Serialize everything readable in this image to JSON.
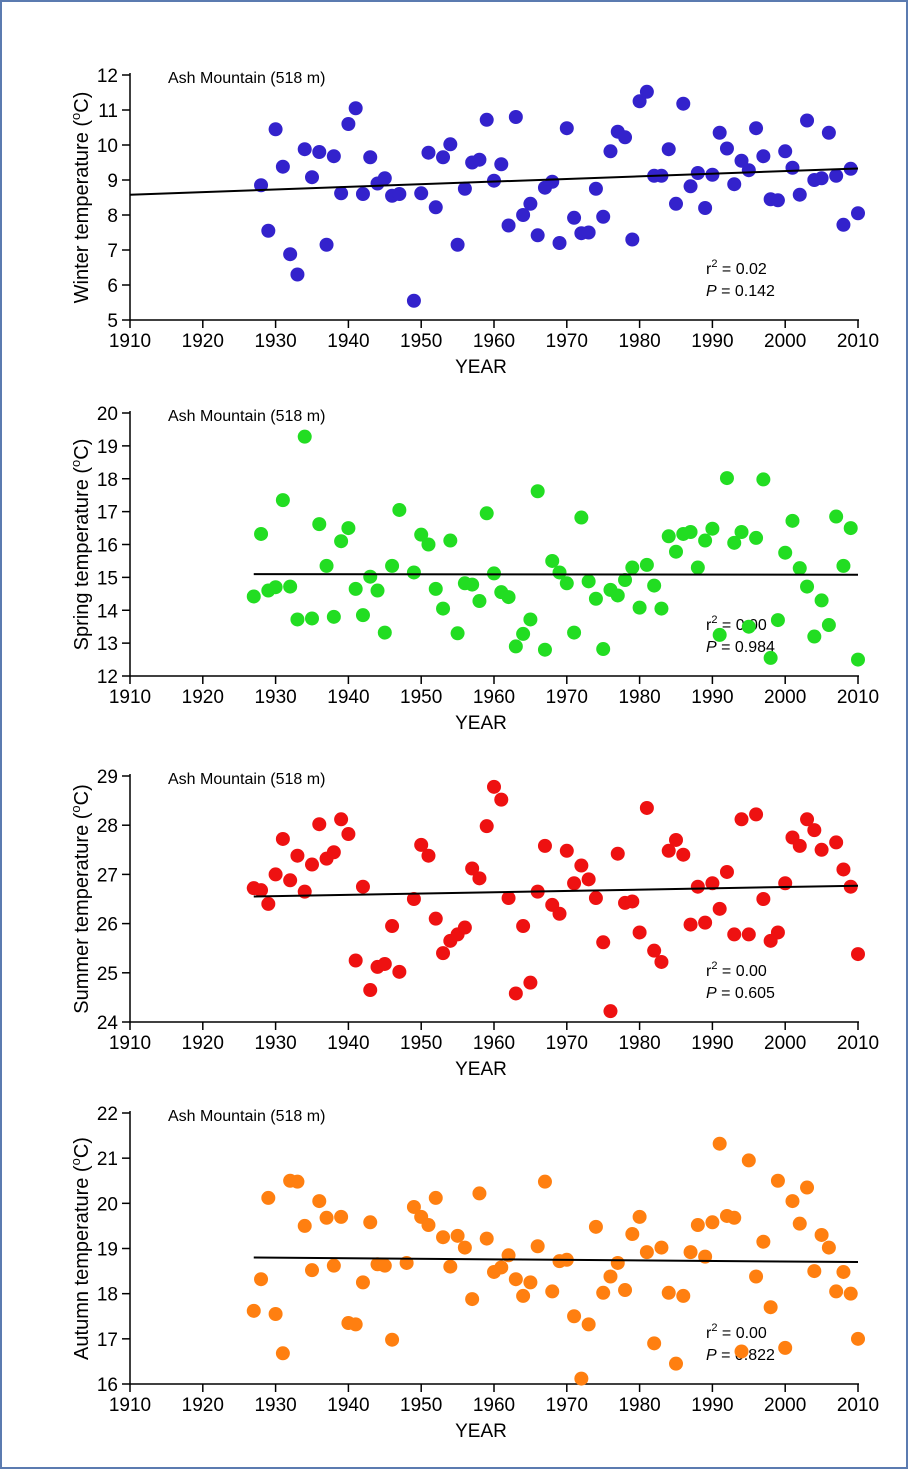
{
  "chart_data": [
    {
      "type": "scatter",
      "title": "Ash Mountain (518 m)",
      "xlabel": "YEAR",
      "ylabel": {
        "text": "Winter temperature (",
        "sup": "o",
        "rest": "C)"
      },
      "xlim": [
        1910,
        2010
      ],
      "xticks": [
        1910,
        1920,
        1930,
        1940,
        1950,
        1960,
        1970,
        1980,
        1990,
        2000,
        2010
      ],
      "ylim": [
        5,
        12
      ],
      "yticks": [
        5,
        6,
        7,
        8,
        9,
        10,
        11,
        12
      ],
      "annotations": [
        {
          "text": "r",
          "sup": "2",
          "rest": " = 0.02"
        },
        {
          "text": "P",
          "rest": " = 0.142"
        }
      ],
      "series": [
        {
          "type": "scatter",
          "color": "#3322cc",
          "x": [
            1928,
            1929,
            1930,
            1931,
            1932,
            1933,
            1934,
            1935,
            1936,
            1937,
            1938,
            1939,
            1940,
            1941,
            1942,
            1943,
            1944,
            1945,
            1946,
            1947,
            1949,
            1950,
            1951,
            1952,
            1953,
            1954,
            1955,
            1956,
            1957,
            1958,
            1959,
            1960,
            1961,
            1962,
            1963,
            1964,
            1965,
            1966,
            1967,
            1968,
            1969,
            1970,
            1971,
            1972,
            1973,
            1974,
            1975,
            1976,
            1977,
            1978,
            1979,
            1980,
            1981,
            1982,
            1983,
            1984,
            1985,
            1986,
            1987,
            1988,
            1989,
            1990,
            1991,
            1992,
            1993,
            1994,
            1995,
            1996,
            1997,
            1998,
            1999,
            2000,
            2001,
            2002,
            2003,
            2004,
            2005,
            2006,
            2007,
            2008,
            2009,
            2010
          ],
          "values": [
            8.85,
            7.55,
            10.45,
            9.38,
            6.88,
            6.3,
            9.88,
            9.08,
            9.8,
            7.15,
            9.68,
            8.62,
            10.6,
            11.05,
            8.6,
            9.65,
            8.9,
            9.05,
            8.55,
            8.6,
            5.55,
            8.62,
            9.78,
            8.22,
            9.65,
            10.02,
            7.15,
            8.75,
            9.5,
            9.58,
            10.72,
            8.98,
            9.45,
            7.7,
            10.8,
            8.0,
            8.32,
            7.42,
            8.78,
            8.95,
            7.2,
            10.48,
            7.92,
            7.48,
            7.5,
            8.75,
            7.95,
            9.82,
            10.38,
            10.22,
            7.3,
            11.25,
            11.52,
            9.12,
            9.12,
            9.88,
            8.32,
            11.18,
            8.82,
            9.2,
            8.2,
            9.15,
            10.35,
            9.9,
            8.88,
            9.55,
            9.28,
            10.48,
            9.68,
            8.45,
            8.42,
            9.82,
            9.35,
            8.58,
            10.7,
            9.0,
            9.05,
            10.35,
            9.12,
            7.72,
            9.32,
            8.05
          ]
        },
        {
          "type": "line",
          "color": "#000000",
          "x": [
            1910,
            2010
          ],
          "values": [
            8.58,
            9.33
          ]
        }
      ]
    },
    {
      "type": "scatter",
      "title": "Ash Mountain (518 m)",
      "xlabel": "YEAR",
      "ylabel": {
        "text": "Spring temperature (",
        "sup": "o",
        "rest": "C)"
      },
      "xlim": [
        1910,
        2010
      ],
      "xticks": [
        1910,
        1920,
        1930,
        1940,
        1950,
        1960,
        1970,
        1980,
        1990,
        2000,
        2010
      ],
      "ylim": [
        12,
        20
      ],
      "yticks": [
        12,
        13,
        14,
        15,
        16,
        17,
        18,
        19,
        20
      ],
      "annotations": [
        {
          "text": "r",
          "sup": "2",
          "rest": " = 0.00"
        },
        {
          "text": "P",
          "rest": " = 0.984"
        }
      ],
      "series": [
        {
          "type": "scatter",
          "color": "#22dd22",
          "x": [
            1927,
            1928,
            1929,
            1930,
            1931,
            1932,
            1933,
            1934,
            1935,
            1936,
            1937,
            1938,
            1939,
            1940,
            1941,
            1942,
            1943,
            1944,
            1945,
            1946,
            1947,
            1949,
            1950,
            1951,
            1952,
            1953,
            1954,
            1955,
            1956,
            1957,
            1958,
            1959,
            1960,
            1961,
            1962,
            1963,
            1964,
            1965,
            1966,
            1967,
            1968,
            1969,
            1970,
            1971,
            1972,
            1973,
            1974,
            1975,
            1976,
            1977,
            1978,
            1979,
            1980,
            1981,
            1982,
            1983,
            1984,
            1985,
            1986,
            1987,
            1988,
            1989,
            1990,
            1991,
            1992,
            1993,
            1994,
            1995,
            1996,
            1997,
            1998,
            1999,
            2000,
            2001,
            2002,
            2003,
            2004,
            2005,
            2006,
            2007,
            2008,
            2009,
            2010
          ],
          "values": [
            14.42,
            16.32,
            14.6,
            14.7,
            17.35,
            14.72,
            13.72,
            19.28,
            13.75,
            16.62,
            15.35,
            13.8,
            16.1,
            16.5,
            14.65,
            13.85,
            15.02,
            14.6,
            13.32,
            15.35,
            17.05,
            15.15,
            16.3,
            16.0,
            14.65,
            14.05,
            16.12,
            13.3,
            14.82,
            14.78,
            14.28,
            16.95,
            15.12,
            14.55,
            14.4,
            12.9,
            13.28,
            13.72,
            17.62,
            12.8,
            15.5,
            15.15,
            14.82,
            13.32,
            16.82,
            14.88,
            14.35,
            12.82,
            14.62,
            14.45,
            14.92,
            15.3,
            14.08,
            15.38,
            14.75,
            14.05,
            16.25,
            15.78,
            16.32,
            16.38,
            15.3,
            16.12,
            16.48,
            13.25,
            18.02,
            16.05,
            16.38,
            13.5,
            16.2,
            17.98,
            12.55,
            13.7,
            15.75,
            16.72,
            15.28,
            14.72,
            13.2,
            14.3,
            13.55,
            16.85,
            15.35,
            16.5,
            12.5
          ]
        },
        {
          "type": "line",
          "color": "#000000",
          "x": [
            1927,
            2010
          ],
          "values": [
            15.1,
            15.08
          ]
        }
      ]
    },
    {
      "type": "scatter",
      "title": "Ash Mountain (518 m)",
      "xlabel": "YEAR",
      "ylabel": {
        "text": "Summer temperature (",
        "sup": "o",
        "rest": "C)"
      },
      "xlim": [
        1910,
        2010
      ],
      "xticks": [
        1910,
        1920,
        1930,
        1940,
        1950,
        1960,
        1970,
        1980,
        1990,
        2000,
        2010
      ],
      "ylim": [
        24,
        29
      ],
      "yticks": [
        24,
        25,
        26,
        27,
        28,
        29
      ],
      "annotations": [
        {
          "text": "r",
          "sup": "2",
          "rest": " = 0.00"
        },
        {
          "text": "P",
          "rest": " = 0.605"
        }
      ],
      "series": [
        {
          "type": "scatter",
          "color": "#ee1111",
          "x": [
            1927,
            1928,
            1929,
            1930,
            1931,
            1932,
            1933,
            1934,
            1935,
            1936,
            1937,
            1938,
            1939,
            1940,
            1941,
            1942,
            1943,
            1944,
            1945,
            1946,
            1947,
            1949,
            1950,
            1951,
            1952,
            1953,
            1954,
            1955,
            1956,
            1957,
            1958,
            1959,
            1960,
            1961,
            1962,
            1963,
            1964,
            1965,
            1966,
            1967,
            1968,
            1969,
            1970,
            1971,
            1972,
            1973,
            1974,
            1975,
            1976,
            1977,
            1978,
            1979,
            1980,
            1981,
            1982,
            1983,
            1984,
            1985,
            1986,
            1987,
            1988,
            1989,
            1990,
            1991,
            1992,
            1993,
            1994,
            1995,
            1996,
            1997,
            1998,
            1999,
            2000,
            2001,
            2002,
            2003,
            2004,
            2005,
            2007,
            2008,
            2009,
            2010
          ],
          "values": [
            26.72,
            26.68,
            26.4,
            27.0,
            27.72,
            26.88,
            27.38,
            26.65,
            27.2,
            28.02,
            27.32,
            27.45,
            28.12,
            27.82,
            25.25,
            26.75,
            24.65,
            25.12,
            25.18,
            25.95,
            25.02,
            26.5,
            27.6,
            27.38,
            26.1,
            25.4,
            25.65,
            25.78,
            25.92,
            27.12,
            26.92,
            27.98,
            28.78,
            28.52,
            26.52,
            24.58,
            25.95,
            24.8,
            26.65,
            27.58,
            26.38,
            26.2,
            27.48,
            26.82,
            27.18,
            26.9,
            26.52,
            25.62,
            24.22,
            27.42,
            26.42,
            26.45,
            25.82,
            28.35,
            25.45,
            25.22,
            27.48,
            27.7,
            27.4,
            25.98,
            26.75,
            26.02,
            26.82,
            26.3,
            27.05,
            25.78,
            28.12,
            25.78,
            28.22,
            26.5,
            25.65,
            25.82,
            26.82,
            27.75,
            27.58,
            28.12,
            27.9,
            27.5,
            27.65,
            27.1,
            26.75,
            25.38
          ]
        },
        {
          "type": "line",
          "color": "#000000",
          "x": [
            1927,
            2010
          ],
          "values": [
            26.55,
            26.77
          ]
        }
      ]
    },
    {
      "type": "scatter",
      "title": "Ash Mountain (518 m)",
      "xlabel": "YEAR",
      "ylabel": {
        "text": "Autumn temperature (",
        "sup": "o",
        "rest": "C)"
      },
      "xlim": [
        1910,
        2010
      ],
      "xticks": [
        1910,
        1920,
        1930,
        1940,
        1950,
        1960,
        1970,
        1980,
        1990,
        2000,
        2010
      ],
      "ylim": [
        16,
        22
      ],
      "yticks": [
        16,
        17,
        18,
        19,
        20,
        21,
        22
      ],
      "annotations": [
        {
          "text": "r",
          "sup": "2",
          "rest": " = 0.00"
        },
        {
          "text": "P",
          "rest": " = 0.822"
        }
      ],
      "series": [
        {
          "type": "scatter",
          "color": "#ff7f10",
          "x": [
            1927,
            1928,
            1929,
            1930,
            1931,
            1932,
            1933,
            1934,
            1935,
            1936,
            1937,
            1938,
            1939,
            1940,
            1941,
            1942,
            1943,
            1944,
            1945,
            1946,
            1948,
            1949,
            1950,
            1951,
            1952,
            1953,
            1954,
            1955,
            1956,
            1957,
            1958,
            1959,
            1960,
            1961,
            1962,
            1963,
            1964,
            1965,
            1966,
            1967,
            1968,
            1969,
            1970,
            1971,
            1972,
            1973,
            1974,
            1975,
            1976,
            1977,
            1978,
            1979,
            1980,
            1981,
            1982,
            1983,
            1984,
            1985,
            1986,
            1987,
            1988,
            1989,
            1990,
            1991,
            1992,
            1993,
            1994,
            1995,
            1996,
            1997,
            1998,
            1999,
            2000,
            2001,
            2002,
            2003,
            2004,
            2005,
            2006,
            2007,
            2008,
            2009,
            2010
          ],
          "values": [
            17.62,
            18.32,
            20.12,
            17.55,
            16.68,
            20.5,
            20.48,
            19.5,
            18.52,
            20.05,
            19.68,
            18.62,
            19.7,
            17.35,
            17.32,
            18.25,
            19.58,
            18.65,
            18.62,
            16.98,
            18.68,
            19.92,
            19.7,
            19.52,
            20.12,
            19.25,
            18.6,
            19.28,
            19.02,
            17.88,
            20.22,
            19.22,
            18.48,
            18.58,
            18.85,
            18.32,
            17.95,
            18.25,
            19.05,
            20.48,
            18.05,
            18.72,
            18.75,
            17.5,
            16.12,
            17.32,
            19.48,
            18.02,
            18.38,
            18.68,
            18.08,
            19.32,
            19.7,
            18.92,
            16.9,
            19.02,
            18.02,
            16.45,
            17.95,
            18.92,
            19.52,
            18.82,
            19.58,
            21.32,
            19.72,
            19.68,
            16.72,
            20.95,
            18.38,
            19.15,
            17.7,
            20.5,
            16.8,
            20.05,
            19.55,
            20.35,
            18.5,
            19.3,
            19.02,
            18.05,
            18.48,
            18.0,
            17.0
          ]
        },
        {
          "type": "line",
          "color": "#000000",
          "x": [
            1927,
            2010
          ],
          "values": [
            18.8,
            18.7
          ]
        }
      ]
    }
  ]
}
